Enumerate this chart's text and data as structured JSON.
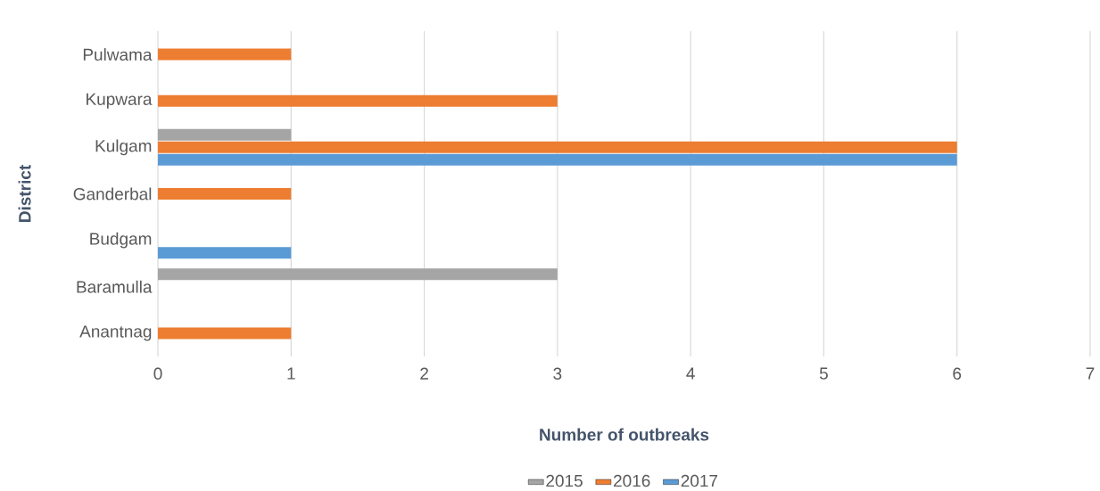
{
  "chart_data": {
    "type": "bar",
    "orientation": "horizontal",
    "xlabel": "Number of outbreaks",
    "ylabel": "District",
    "categories": [
      "Pulwama",
      "Kupwara",
      "Kulgam",
      "Ganderbal",
      "Budgam",
      "Baramulla",
      "Anantnag"
    ],
    "series": [
      {
        "name": "2015",
        "color": "#a5a5a5",
        "values": [
          null,
          null,
          1,
          null,
          null,
          3,
          null
        ]
      },
      {
        "name": "2016",
        "color": "#ed7d31",
        "values": [
          1,
          3,
          6,
          1,
          null,
          null,
          1
        ]
      },
      {
        "name": "2017",
        "color": "#5b9bd5",
        "values": [
          null,
          null,
          6,
          null,
          1,
          null,
          null
        ]
      }
    ],
    "xlim": [
      0,
      7
    ],
    "xticks": [
      0,
      1,
      2,
      3,
      4,
      5,
      6,
      7
    ],
    "grid": "x",
    "legend": "bottom"
  }
}
